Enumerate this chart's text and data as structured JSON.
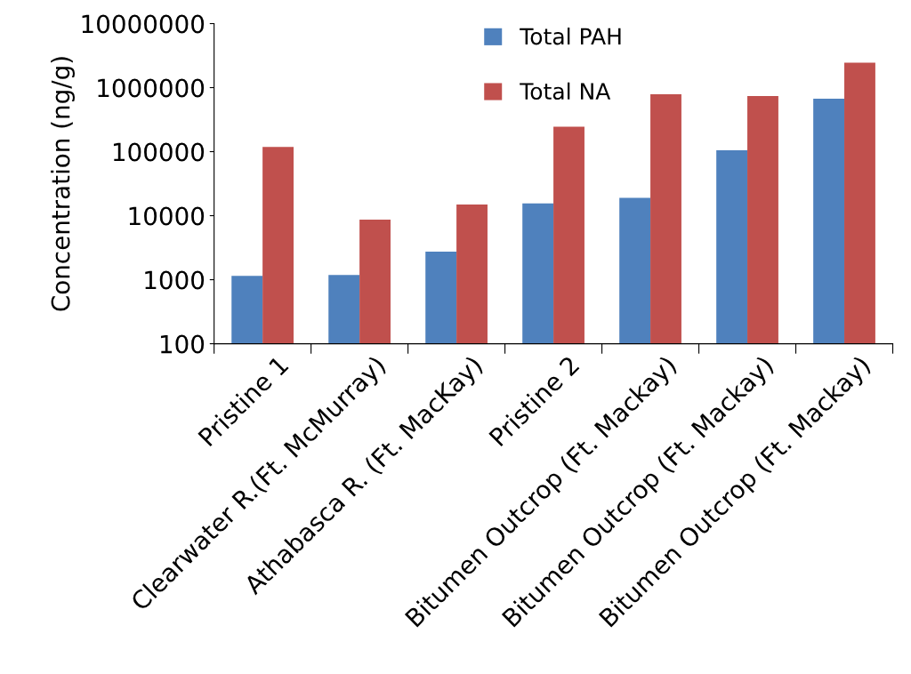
{
  "chart_data": {
    "type": "bar",
    "ylabel": "Concentration (ng/g)",
    "categories": [
      "Pristine 1",
      "Clearwater R.(Ft. McMurray)",
      "Athabasca R. (Ft. MacKay)",
      "Pristine 2",
      "Bitumen Outcrop (Ft. Mackay)",
      "Bitumen Outcrop (Ft. Mackay)",
      "Bitumen Outcrop (Ft. Mackay)"
    ],
    "series": [
      {
        "name": "Total PAH",
        "color": "#4f81bd",
        "values": [
          1150,
          1190,
          2750,
          15600,
          19000,
          105000,
          670000
        ]
      },
      {
        "name": "Total NA",
        "color": "#c0504d",
        "values": [
          118000,
          8700,
          15000,
          246000,
          790000,
          740000,
          2450000
        ]
      }
    ],
    "log": "y",
    "ylim": [
      100,
      10000000
    ],
    "yticks": [
      100,
      1000,
      10000,
      100000,
      1000000,
      10000000
    ],
    "grid": false,
    "legend": "top"
  }
}
